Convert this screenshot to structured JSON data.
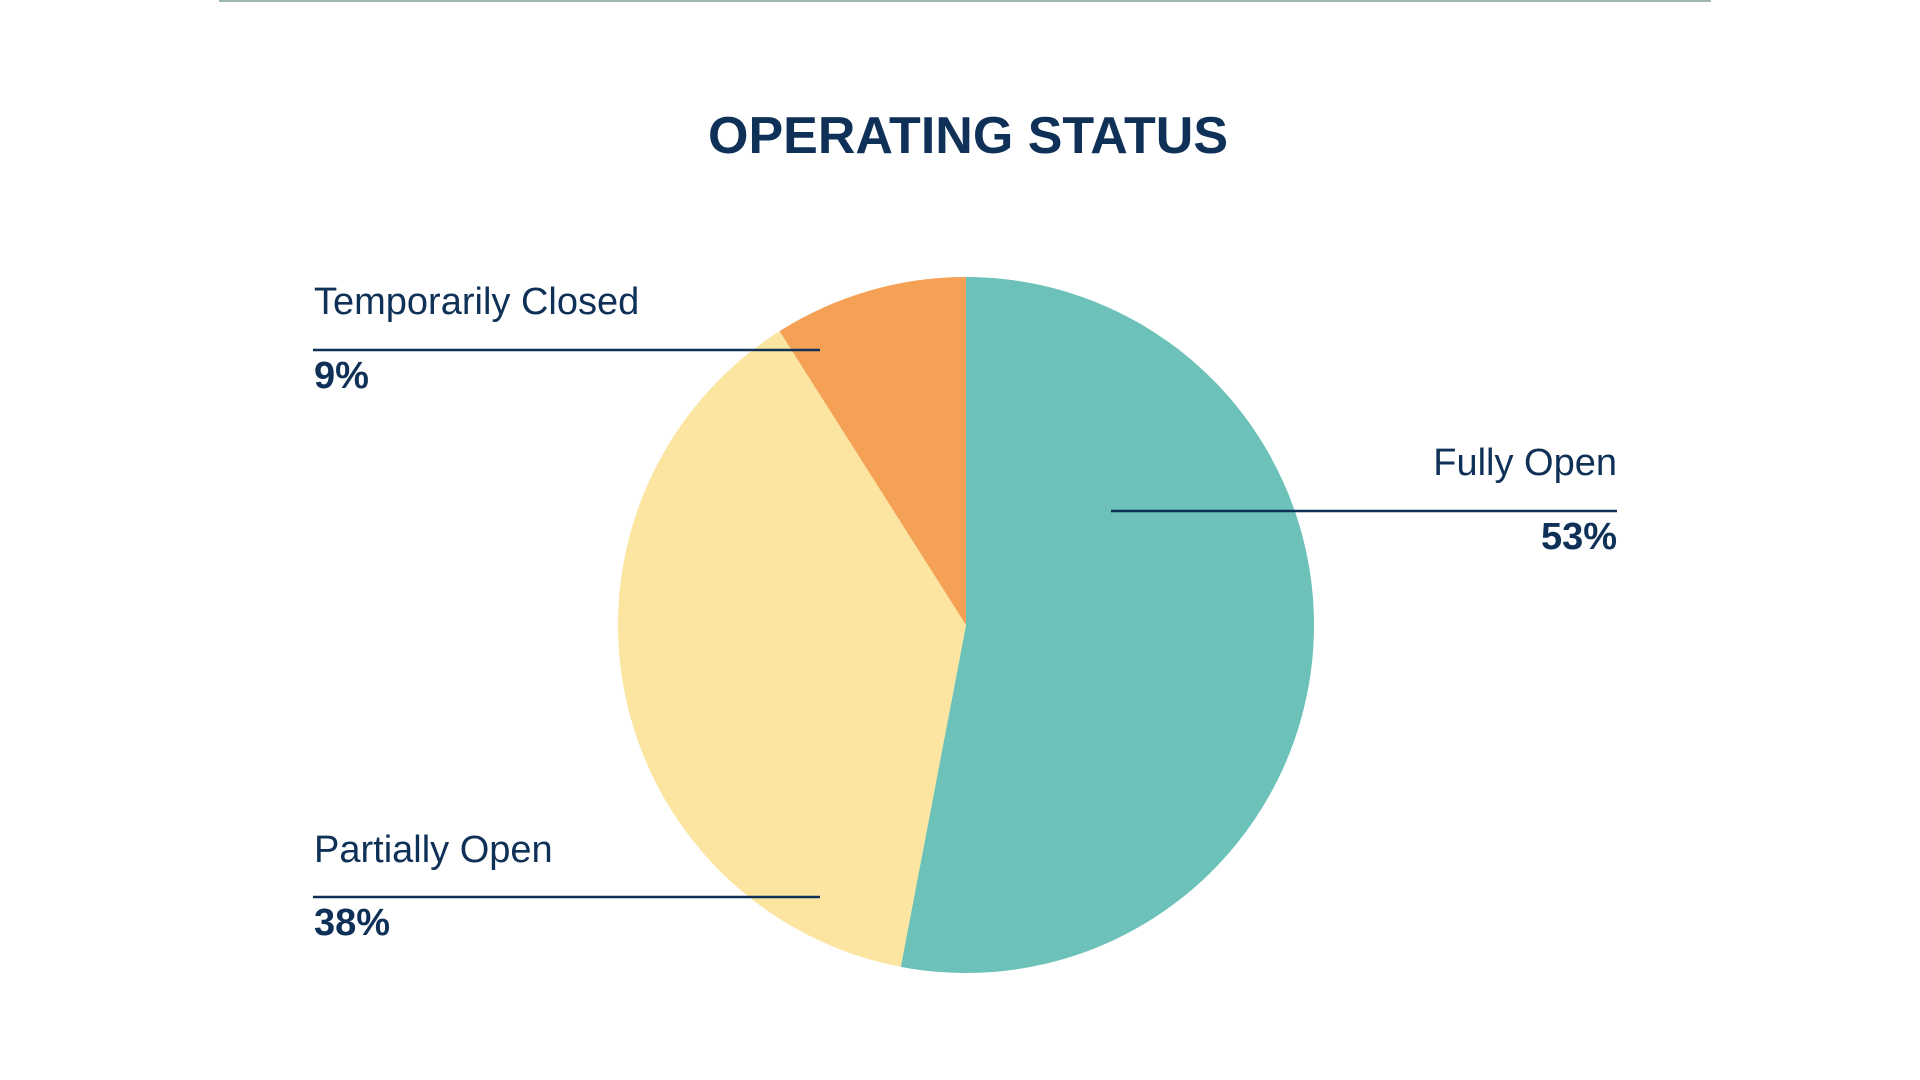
{
  "chart_data": {
    "type": "pie",
    "title": "OPERATING STATUS",
    "categories": [
      "Fully Open",
      "Partially Open",
      "Temporarily Closed"
    ],
    "values": [
      53,
      38,
      9
    ],
    "value_labels": [
      "53%",
      "38%",
      "9%"
    ],
    "colors": [
      "#6cc1b8",
      "#fbe5a1",
      "#f4a155"
    ]
  }
}
